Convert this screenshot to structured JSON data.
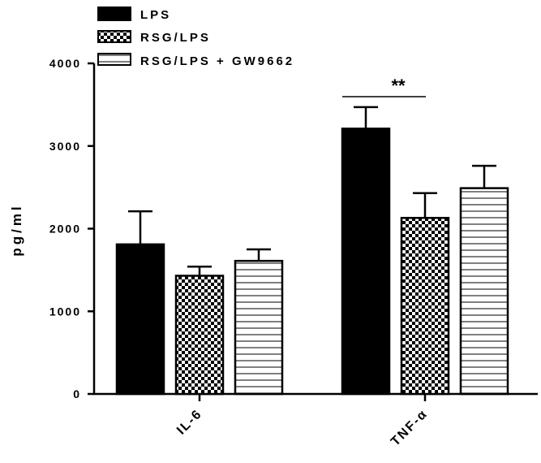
{
  "chart_data": {
    "type": "bar",
    "title": "",
    "xlabel": "",
    "ylabel": "pg/ml",
    "ylim": [
      0,
      4000
    ],
    "yticks": [
      0,
      1000,
      2000,
      3000,
      4000
    ],
    "ytick_labels": [
      "0",
      "1000",
      "2000",
      "3000",
      "4000"
    ],
    "categories": [
      "IL-6",
      "TNF-α"
    ],
    "grid": false,
    "legend_position": "top-left",
    "series": [
      {
        "name": "LPS",
        "pattern": "solid",
        "color": "#000000",
        "values": [
          1810,
          3210
        ],
        "errors": [
          400,
          260
        ]
      },
      {
        "name": "RSG/LPS",
        "pattern": "checkerboard",
        "color": "#000000",
        "values": [
          1430,
          2130
        ],
        "errors": [
          110,
          300
        ]
      },
      {
        "name": "RSG/LPS + GW9662",
        "pattern": "horizontal-lines",
        "color": "#000000",
        "values": [
          1610,
          2490
        ],
        "errors": [
          140,
          270
        ]
      }
    ],
    "annotations": [
      {
        "text": "**",
        "category": "TNF-α",
        "between_series": [
          "LPS",
          "RSG/LPS"
        ]
      }
    ]
  }
}
